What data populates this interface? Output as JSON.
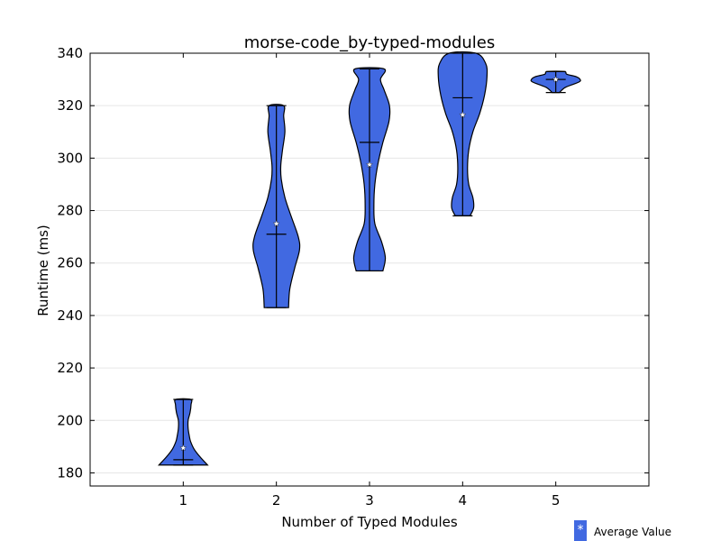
{
  "chart_data": {
    "type": "violin",
    "title": "morse-code_by-typed-modules",
    "xlabel": "Number of Typed Modules",
    "ylabel": "Runtime (ms)",
    "xlim": [
      0,
      6
    ],
    "ylim": [
      175,
      340
    ],
    "xticks": [
      1,
      2,
      3,
      4,
      5
    ],
    "yticks": [
      180,
      200,
      220,
      240,
      260,
      280,
      300,
      320,
      340
    ],
    "grid": "horizontal",
    "colors": {
      "violin_fill": "#4169e1",
      "edge": "#000000",
      "grid": "#e6e6e6",
      "marker": "#ffffff"
    },
    "legend": {
      "label": "Average Value",
      "marker": "*",
      "placement": "below-right"
    },
    "violins": [
      {
        "x": 1,
        "min": 183,
        "max": 208,
        "median": 185,
        "mean": 189.5,
        "density": [
          [
            183,
            1.0
          ],
          [
            186,
            0.7
          ],
          [
            189,
            0.45
          ],
          [
            192,
            0.3
          ],
          [
            194,
            0.25
          ],
          [
            197,
            0.2
          ],
          [
            200,
            0.2
          ],
          [
            203,
            0.28
          ],
          [
            206,
            0.32
          ],
          [
            208,
            0.3
          ]
        ]
      },
      {
        "x": 2,
        "min": 243,
        "max": 320,
        "median": 271,
        "mean": 275,
        "density": [
          [
            243,
            0.5
          ],
          [
            250,
            0.55
          ],
          [
            258,
            0.75
          ],
          [
            265,
            0.95
          ],
          [
            270,
            0.9
          ],
          [
            278,
            0.6
          ],
          [
            285,
            0.35
          ],
          [
            292,
            0.2
          ],
          [
            297,
            0.18
          ],
          [
            303,
            0.25
          ],
          [
            310,
            0.35
          ],
          [
            316,
            0.3
          ],
          [
            320,
            0.3
          ]
        ]
      },
      {
        "x": 3,
        "min": 257,
        "max": 334,
        "median": 306,
        "mean": 297.5,
        "density": [
          [
            257,
            0.55
          ],
          [
            262,
            0.65
          ],
          [
            268,
            0.5
          ],
          [
            275,
            0.22
          ],
          [
            282,
            0.18
          ],
          [
            290,
            0.22
          ],
          [
            298,
            0.35
          ],
          [
            306,
            0.55
          ],
          [
            314,
            0.8
          ],
          [
            320,
            0.82
          ],
          [
            326,
            0.6
          ],
          [
            330,
            0.45
          ],
          [
            334,
            0.6
          ]
        ]
      },
      {
        "x": 4,
        "min": 278,
        "max": 340,
        "median": 323,
        "mean": 316.5,
        "density": [
          [
            278,
            0.3
          ],
          [
            281,
            0.45
          ],
          [
            285,
            0.42
          ],
          [
            290,
            0.25
          ],
          [
            296,
            0.2
          ],
          [
            303,
            0.25
          ],
          [
            310,
            0.42
          ],
          [
            317,
            0.7
          ],
          [
            324,
            0.9
          ],
          [
            331,
            1.0
          ],
          [
            336,
            0.95
          ],
          [
            340,
            0.55
          ]
        ]
      },
      {
        "x": 5,
        "min": 325,
        "max": 333,
        "median": 330,
        "mean": 330,
        "density": [
          [
            325,
            0.15
          ],
          [
            327,
            0.4
          ],
          [
            329,
            0.95
          ],
          [
            330,
            1.0
          ],
          [
            331,
            0.85
          ],
          [
            332,
            0.45
          ],
          [
            333,
            0.35
          ]
        ]
      }
    ]
  }
}
